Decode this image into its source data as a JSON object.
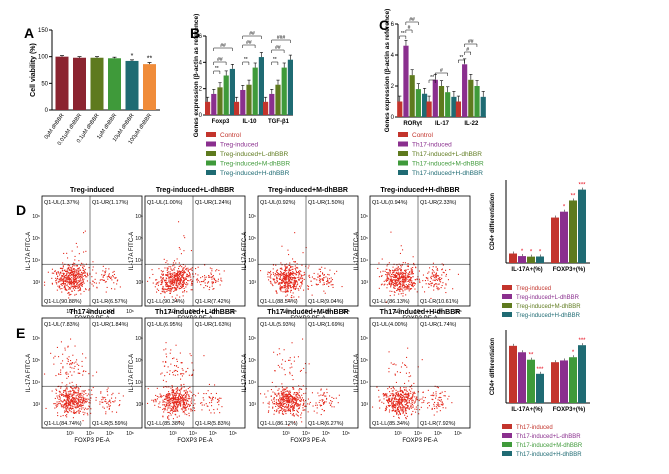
{
  "panels": {
    "A": "A",
    "B": "B",
    "C": "C",
    "D": "D",
    "E": "E"
  },
  "colors": {
    "dark_red": "#8B2430",
    "purple": "#8A2F8E",
    "olive": "#5E7A1E",
    "green": "#3F9A3A",
    "teal": "#1F6B73",
    "orange": "#F08C3A",
    "red": "#E60012",
    "flow_dot": "#E4281C"
  },
  "chart_data": [
    {
      "id": "A",
      "type": "bar",
      "ylabel": "Cell viability (%)",
      "ylim": [
        0,
        150
      ],
      "yticks": [
        "0",
        "50",
        "100",
        "150"
      ],
      "categories": [
        "0μM dhBBR",
        "0.01μM dhBBR",
        "0.1μM dhBBR",
        "1μM dhBBR",
        "10μM dhBBR",
        "100μM dhBBR"
      ],
      "values": [
        100,
        98,
        98,
        97,
        92,
        86
      ],
      "errors": [
        2,
        2,
        2,
        2,
        2,
        3
      ],
      "significance": [
        "",
        "",
        "",
        "",
        "*",
        "**"
      ]
    },
    {
      "id": "B",
      "type": "bar",
      "ylabel": "Genes expression (β-actin as reference)",
      "ylim": [
        0,
        6
      ],
      "yticks": [
        "0",
        "2",
        "4",
        "6"
      ],
      "groups": [
        "Foxp3",
        "IL-10",
        "TGF-β1"
      ],
      "series": [
        {
          "name": "Control",
          "values": [
            1.0,
            1.0,
            1.0
          ]
        },
        {
          "name": "Treg-induced",
          "values": [
            1.6,
            1.9,
            1.6
          ]
        },
        {
          "name": "Treg-induced+L-dhBBR",
          "values": [
            2.1,
            2.3,
            2.3
          ]
        },
        {
          "name": "Treg-induced+M-dhBBR",
          "values": [
            3.0,
            3.6,
            3.6
          ]
        },
        {
          "name": "Treg-induced+H-dhBBR",
          "values": [
            3.5,
            4.4,
            4.2
          ]
        }
      ],
      "annotations": [
        "**",
        "##",
        "###",
        "**",
        "##",
        "##",
        "**",
        "##",
        "###"
      ]
    },
    {
      "id": "C",
      "type": "bar",
      "ylabel": "Genes expression (β-actin as reference)",
      "ylim": [
        0,
        6
      ],
      "yticks": [
        "0",
        "2",
        "4",
        "6"
      ],
      "groups": [
        "RORγt",
        "IL-17",
        "IL-22"
      ],
      "series": [
        {
          "name": "Control",
          "values": [
            1.0,
            1.0,
            1.0
          ]
        },
        {
          "name": "Th17-induced",
          "values": [
            4.6,
            2.4,
            3.4
          ]
        },
        {
          "name": "Th17-induced+L-dhBBR",
          "values": [
            2.7,
            2.0,
            2.4
          ]
        },
        {
          "name": "Th17-induced+M-dhBBR",
          "values": [
            1.8,
            1.6,
            2.0
          ]
        },
        {
          "name": "Th17-induced+H-dhBBR",
          "values": [
            1.5,
            1.3,
            1.3
          ]
        }
      ],
      "annotations": [
        "**",
        "#",
        "##",
        "##",
        "**",
        "#",
        "##",
        "**",
        "#",
        "##"
      ]
    },
    {
      "id": "D-bar",
      "type": "bar",
      "ylabel": "CD4+ differentiation",
      "groups": [
        "IL-17A+(%)",
        "FOXP3+(%)"
      ],
      "series": [
        {
          "name": "Treg-induced",
          "values": [
            1.37,
            6.57
          ]
        },
        {
          "name": "Treg-induced+L-dhBBR",
          "values": [
            1.0,
            7.42
          ]
        },
        {
          "name": "Treg-induced+M-dhBBR",
          "values": [
            0.92,
            9.04
          ]
        },
        {
          "name": "Treg-induced+H-dhBBR",
          "values": [
            0.94,
            10.61
          ]
        }
      ],
      "significance": [
        "",
        "*",
        "*",
        "*",
        "",
        "*",
        "**",
        "***"
      ]
    },
    {
      "id": "E-bar",
      "type": "bar",
      "ylabel": "CD4+ differentiation",
      "groups": [
        "IL-17A+(%)",
        "FOXP3+(%)"
      ],
      "series": [
        {
          "name": "Th17-induced",
          "values": [
            7.83,
            5.59
          ]
        },
        {
          "name": "Th17-induced+L-dhBBR",
          "values": [
            6.95,
            5.83
          ]
        },
        {
          "name": "Th17-induced+M-dhBBR",
          "values": [
            5.93,
            6.27
          ]
        },
        {
          "name": "Th17-induced+H-dhBBR",
          "values": [
            4.0,
            7.92
          ]
        }
      ],
      "significance": [
        "",
        "",
        "**",
        "***",
        "",
        "",
        "*",
        "***"
      ]
    }
  ],
  "flow_rows": [
    {
      "panel": "D",
      "plots": [
        {
          "title": "Treg-induced",
          "UL": "Q1-UL(1.37%)",
          "UR": "Q1-UR(1.17%)",
          "LL": "Q1-LL(90.88%)",
          "LR": "Q1-LR(6.57%)"
        },
        {
          "title": "Treg-induced+L-dhBBR",
          "UL": "Q1-UL(1.00%)",
          "UR": "Q1-UR(1.24%)",
          "LL": "Q1-LL(90.34%)",
          "LR": "Q1-LR(7.42%)"
        },
        {
          "title": "Treg-induced+M-dhBBR",
          "UL": "Q1-UL(0.92%)",
          "UR": "Q1-UR(1.50%)",
          "LL": "Q1-LL(88.54%)",
          "LR": "Q1-LR(9.04%)"
        },
        {
          "title": "Treg-induced+H-dhBBR",
          "UL": "Q1-UL(0.94%)",
          "UR": "Q1-UR(2.33%)",
          "LL": "Q1-LL(86.13%)",
          "LR": "Q1-LR(10.61%)"
        }
      ]
    },
    {
      "panel": "E",
      "plots": [
        {
          "title": "Th17-induced",
          "UL": "Q1-UL(7.83%)",
          "UR": "Q1-UR(1.84%)",
          "LL": "Q1-LL(84.74%)",
          "LR": "Q1-LR(5.59%)"
        },
        {
          "title": "Th17-induced+L-dhBBR",
          "UL": "Q1-UL(6.95%)",
          "UR": "Q1-UR(1.63%)",
          "LL": "Q1-LL(85.38%)",
          "LR": "Q1-LR(5.83%)"
        },
        {
          "title": "Th17-induced+M-dhBBR",
          "UL": "Q1-UL(5.93%)",
          "UR": "Q1-UR(1.69%)",
          "LL": "Q1-LL(86.12%)",
          "LR": "Q1-LR(6.27%)"
        },
        {
          "title": "Th17-induced+H-dhBBR",
          "UL": "Q1-UL(4.00%)",
          "UR": "Q1-UR(1.74%)",
          "LL": "Q1-LL(85.34%)",
          "LR": "Q1-LR(7.92%)"
        }
      ]
    }
  ],
  "flow_axes": {
    "xlabel": "FOXP3 PE-A",
    "ylabel": "IL-17A FITC-A",
    "xticks": [
      "10²",
      "10³",
      "10⁴",
      "10⁵",
      "10⁶"
    ],
    "yticks": [
      "10²",
      "10³",
      "10⁴",
      "10⁵",
      "10⁶"
    ]
  }
}
